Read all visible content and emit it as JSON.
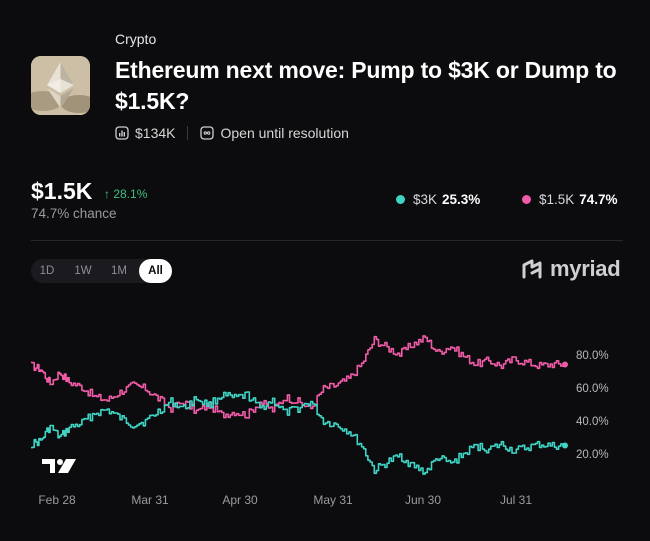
{
  "market": {
    "category": "Crypto",
    "title": "Ethereum next move: Pump to $3K or Dump to $1.5K?",
    "volume": "$134K",
    "status": "Open until resolution"
  },
  "headline": {
    "price": "$1.5K",
    "change": "↑ 28.1%",
    "chance": "74.7% chance"
  },
  "legend": [
    {
      "label": "$3K",
      "value": "25.3%",
      "color": "#3fd4c4"
    },
    {
      "label": "$1.5K",
      "value": "74.7%",
      "color": "#f05ba8"
    }
  ],
  "range_tabs": [
    "1D",
    "1W",
    "1M",
    "All"
  ],
  "active_tab": "All",
  "brand": "myriad",
  "chart_data": {
    "type": "line",
    "x_ticks": [
      "Feb 28",
      "Mar 31",
      "Apr 30",
      "May 31",
      "Jun 30",
      "Jul 31"
    ],
    "y_ticks": [
      "20.0%",
      "40.0%",
      "60.0%",
      "80.0%"
    ],
    "ylim": [
      0,
      100
    ],
    "series": [
      {
        "name": "$1.5K",
        "color": "#f05ba8",
        "x": [
          0,
          3,
          6,
          9,
          12,
          16,
          20,
          24,
          28,
          32,
          36,
          40,
          44,
          48,
          52,
          56,
          60,
          64,
          68,
          72,
          76,
          80,
          84,
          88,
          92,
          96,
          100,
          104,
          108,
          112,
          116,
          120,
          124,
          128,
          132,
          136,
          140,
          144,
          148,
          152,
          156,
          160,
          164,
          168
        ],
        "values": [
          74,
          72,
          63,
          70,
          64,
          61,
          55,
          53,
          58,
          62,
          60,
          54,
          48,
          52,
          46,
          50,
          44,
          46,
          44,
          52,
          47,
          55,
          52,
          48,
          60,
          62,
          66,
          75,
          90,
          85,
          81,
          87,
          91,
          82,
          86,
          80,
          75,
          77,
          74,
          78,
          76,
          74,
          75,
          74.7
        ]
      },
      {
        "name": "$3K",
        "color": "#3fd4c4",
        "x": [
          0,
          3,
          6,
          9,
          12,
          16,
          20,
          24,
          28,
          32,
          36,
          40,
          44,
          48,
          52,
          56,
          60,
          64,
          68,
          72,
          76,
          80,
          84,
          88,
          92,
          96,
          100,
          104,
          108,
          112,
          116,
          120,
          124,
          128,
          132,
          136,
          140,
          144,
          148,
          152,
          156,
          160,
          164,
          168
        ],
        "values": [
          26,
          28,
          37,
          30,
          36,
          39,
          45,
          47,
          42,
          38,
          40,
          46,
          52,
          48,
          54,
          50,
          56,
          54,
          56,
          48,
          53,
          45,
          48,
          52,
          40,
          38,
          34,
          25,
          10,
          15,
          19,
          13,
          9,
          18,
          14,
          20,
          25,
          23,
          26,
          22,
          24,
          26,
          25,
          25.3
        ]
      }
    ]
  }
}
